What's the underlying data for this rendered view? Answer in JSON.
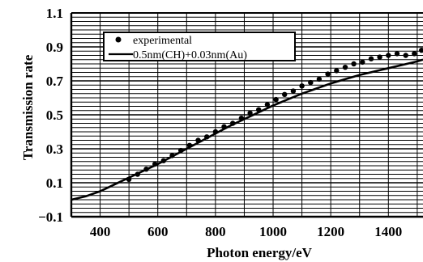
{
  "chart_data": {
    "type": "scatter",
    "title": "",
    "xlabel": "Photon energy/eV",
    "ylabel": "Transmission rate",
    "xlim": [
      300,
      1520
    ],
    "ylim": [
      -0.1,
      1.1
    ],
    "grid": true,
    "legend_position": "top-left",
    "x_ticks": [
      400,
      600,
      800,
      1000,
      1200,
      1400
    ],
    "y_ticks": [
      -0.1,
      0.1,
      0.3,
      0.5,
      0.7,
      0.9,
      1.1
    ],
    "x_tick_labels": [
      "400",
      "600",
      "800",
      "1000",
      "1200",
      "1400"
    ],
    "y_tick_labels": [
      "−0.1",
      "0.1",
      "0.3",
      "0.5",
      "0.7",
      "0.9",
      "1.1"
    ],
    "series": [
      {
        "name": "experimental",
        "type": "scatter",
        "x": [
          500,
          530,
          560,
          590,
          620,
          650,
          680,
          710,
          740,
          770,
          800,
          830,
          860,
          890,
          920,
          950,
          980,
          1010,
          1040,
          1070,
          1100,
          1130,
          1160,
          1190,
          1220,
          1250,
          1280,
          1310,
          1340,
          1370,
          1400,
          1430,
          1460,
          1490,
          1515
        ],
        "y": [
          0.12,
          0.15,
          0.18,
          0.21,
          0.23,
          0.26,
          0.29,
          0.32,
          0.35,
          0.37,
          0.4,
          0.43,
          0.45,
          0.48,
          0.51,
          0.53,
          0.56,
          0.59,
          0.62,
          0.64,
          0.67,
          0.69,
          0.71,
          0.74,
          0.76,
          0.78,
          0.8,
          0.81,
          0.83,
          0.84,
          0.85,
          0.86,
          0.85,
          0.86,
          0.88
        ]
      },
      {
        "name": "0.5nm(CH)+0.03nm(Au)",
        "type": "line",
        "x": [
          300,
          350,
          400,
          450,
          500,
          550,
          600,
          650,
          700,
          750,
          800,
          850,
          900,
          950,
          1000,
          1050,
          1100,
          1150,
          1200,
          1250,
          1300,
          1350,
          1400,
          1450,
          1500,
          1520
        ],
        "y": [
          0.0,
          0.02,
          0.05,
          0.09,
          0.13,
          0.17,
          0.21,
          0.255,
          0.3,
          0.345,
          0.39,
          0.435,
          0.475,
          0.515,
          0.555,
          0.59,
          0.625,
          0.655,
          0.685,
          0.71,
          0.735,
          0.755,
          0.775,
          0.795,
          0.815,
          0.825
        ]
      }
    ]
  }
}
